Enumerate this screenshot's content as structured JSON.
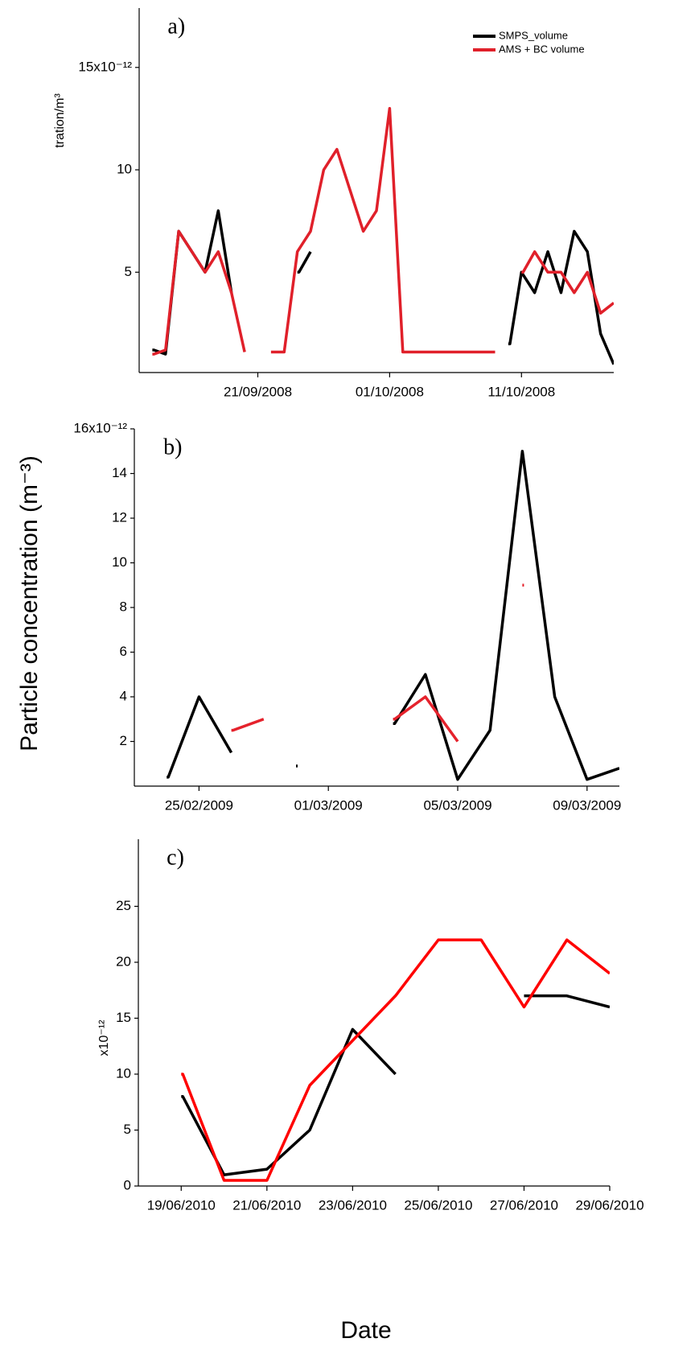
{
  "y_label": "Particle concentration (m⁻³)",
  "x_label": "Date",
  "chart_data": [
    {
      "type": "line",
      "panel_label": "a)",
      "axis_title": "tration/m³",
      "x": [
        "13/09/2008",
        "14/09/2008",
        "15/09/2008",
        "16/09/2008",
        "17/09/2008",
        "18/09/2008",
        "19/09/2008",
        "20/09/2008",
        "21/09/2008",
        "22/09/2008",
        "23/09/2008",
        "24/09/2008",
        "25/09/2008",
        "26/09/2008",
        "27/09/2008",
        "28/09/2008",
        "29/09/2008",
        "30/09/2008",
        "01/10/2008",
        "02/10/2008",
        "03/10/2008",
        "04/10/2008",
        "05/10/2008",
        "06/10/2008",
        "07/10/2008",
        "08/10/2008",
        "09/10/2008",
        "10/10/2008",
        "11/10/2008",
        "12/10/2008",
        "13/10/2008",
        "14/10/2008",
        "15/10/2008",
        "16/10/2008",
        "17/10/2008",
        "18/10/2008"
      ],
      "series": [
        {
          "name": "SMPS_volume",
          "color": "#000000",
          "values": [
            1.2,
            1.0,
            7,
            6,
            5,
            8,
            4,
            null,
            null,
            null,
            null,
            5,
            6,
            null,
            null,
            null,
            null,
            null,
            null,
            null,
            null,
            null,
            null,
            null,
            null,
            null,
            null,
            1.5,
            5,
            4,
            6,
            4,
            7,
            6,
            2,
            0.5
          ]
        },
        {
          "name": "AMS + BC volume",
          "color": "#e0202a",
          "values": [
            1.0,
            1.2,
            7,
            6,
            5,
            6,
            4,
            1.1,
            null,
            1.1,
            1.1,
            6,
            7,
            10,
            11,
            9,
            7,
            8,
            13,
            1.1,
            1.1,
            1.1,
            1.1,
            1.1,
            1.1,
            1.1,
            1.1,
            null,
            5,
            6,
            5,
            5,
            4,
            5,
            3,
            3.5
          ]
        }
      ],
      "xlim": [
        "12/09/2008",
        "18/10/2008"
      ],
      "xticks": [
        "21/09/2008",
        "01/10/2008",
        "11/10/2008"
      ],
      "ylim": [
        0.1,
        17.9
      ],
      "yticks": [
        5,
        10,
        {
          "value": 15,
          "label": "15x10⁻¹²"
        }
      ],
      "legend": "top-right"
    },
    {
      "type": "line",
      "panel_label": "b)",
      "x": [
        "24/02/2009",
        "25/02/2009",
        "26/02/2009",
        "27/02/2009",
        "28/02/2009",
        "01/03/2009",
        "02/03/2009",
        "03/03/2009",
        "04/03/2009",
        "05/03/2009",
        "06/03/2009",
        "07/03/2009",
        "08/03/2009",
        "09/03/2009",
        "10/03/2009"
      ],
      "series": [
        {
          "name": "SMPS_volume",
          "color": "#000000",
          "values": [
            0.4,
            4,
            1.5,
            null,
            0.9,
            null,
            null,
            2.8,
            5,
            0.3,
            2.5,
            15,
            4,
            0.3,
            0.8
          ]
        },
        {
          "name": "AMS + BC volume",
          "color": "#e5222c",
          "values": [
            null,
            null,
            2.5,
            3,
            null,
            null,
            null,
            3,
            4,
            2,
            null,
            9,
            null,
            null,
            null
          ]
        }
      ],
      "xlim": [
        "23/02/2009",
        "10/03/2009"
      ],
      "xticks": [
        "25/02/2009",
        "01/03/2009",
        "05/03/2009",
        "09/03/2009"
      ],
      "ylim": [
        0,
        16
      ],
      "yticks": [
        2,
        4,
        6,
        8,
        10,
        12,
        14,
        {
          "value": 16,
          "label": "16x10⁻¹²"
        }
      ]
    },
    {
      "type": "line",
      "panel_label": "c)",
      "axis_title": "x10⁻¹²",
      "x": [
        "19/06/2010",
        "20/06/2010",
        "21/06/2010",
        "22/06/2010",
        "23/06/2010",
        "24/06/2010",
        "25/06/2010",
        "26/06/2010",
        "27/06/2010",
        "28/06/2010",
        "29/06/2010"
      ],
      "series": [
        {
          "name": "SMPS_volume",
          "color": "#000000",
          "values": [
            8,
            1,
            1.5,
            5,
            14,
            10,
            null,
            null,
            17,
            17,
            16
          ]
        },
        {
          "name": "AMS + BC volume",
          "color": "#ff0000",
          "values": [
            10,
            0.5,
            0.5,
            9,
            13,
            17,
            22,
            22,
            16,
            22,
            19
          ]
        }
      ],
      "xlim": [
        "18/06/2010",
        "29/06/2010"
      ],
      "xticks": [
        "19/06/2010",
        "21/06/2010",
        "23/06/2010",
        "25/06/2010",
        "27/06/2010",
        "29/06/2010"
      ],
      "ylim": [
        0,
        31
      ],
      "yticks": [
        0,
        5,
        10,
        15,
        20,
        25
      ]
    }
  ]
}
